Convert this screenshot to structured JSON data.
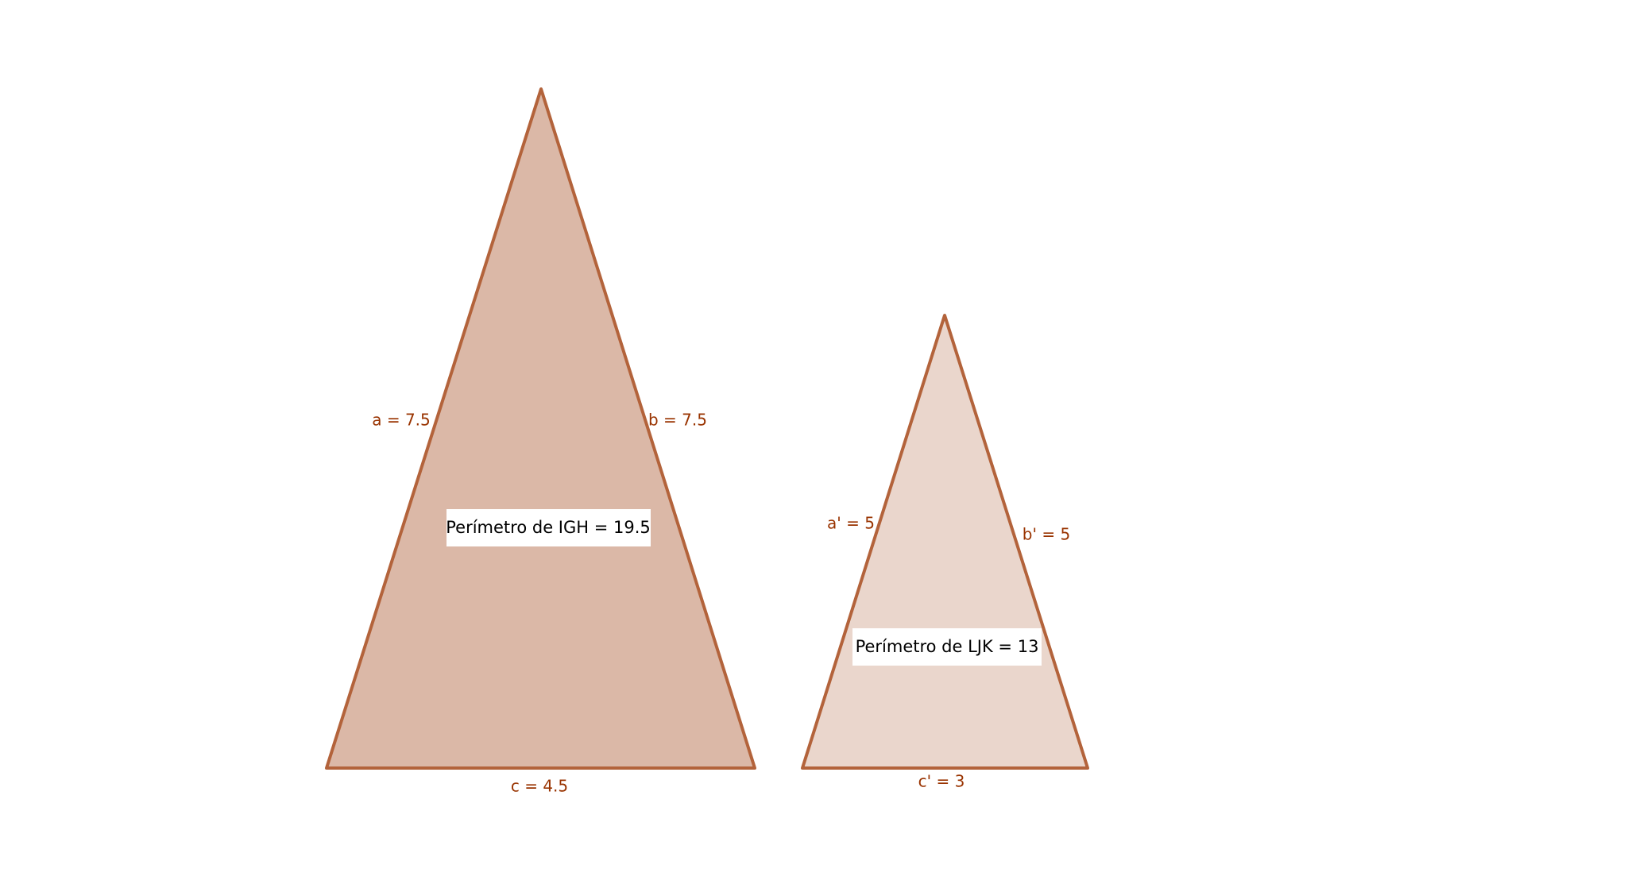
{
  "triangles": [
    {
      "sides": {
        "a": "a = 7.5",
        "b": "b = 7.5",
        "c": "c = 4.5"
      },
      "perimeter": "Perímetro de  IGH = 19.5"
    },
    {
      "sides": {
        "a": "a' = 5",
        "b": "b' = 5",
        "c": "c' = 3"
      },
      "perimeter": "Perímetro de  LJK = 13"
    }
  ]
}
